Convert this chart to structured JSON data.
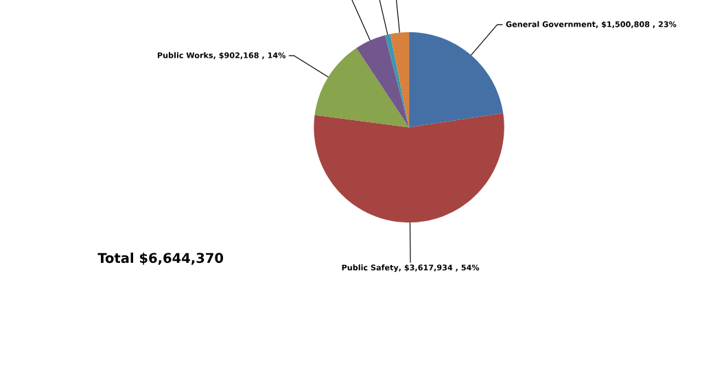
{
  "chart_data": {
    "type": "pie",
    "categories": [
      "General Government",
      "Public Safety",
      "Public Works",
      null,
      null,
      null
    ],
    "values": [
      1500808,
      3617934,
      902168,
      350000,
      60000,
      210000
    ],
    "colors": [
      "#4470a5",
      "#a64442",
      "#88a44c",
      "#72578e",
      "#3d97ae",
      "#d8813c"
    ],
    "value_labels": [
      ", $1,500,808 , 23%",
      ", $3,617,934 , 54%",
      ", $902,168 , 14%",
      null,
      null,
      null
    ],
    "annotations": [
      "Total $6,644,370"
    ]
  }
}
